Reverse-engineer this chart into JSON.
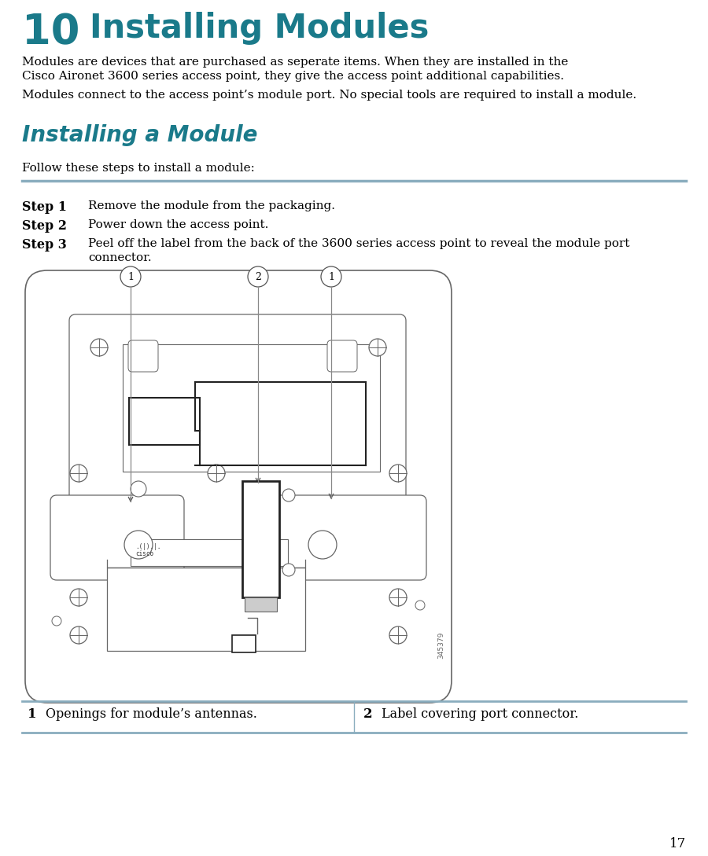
{
  "title_num": "10",
  "title_text": "  Installing Modules",
  "title_color": "#1a7a8a",
  "body_color": "#000000",
  "bg_color": "#ffffff",
  "para1_line1": "Modules are devices that are purchased as seperate items. When they are installed in the",
  "para1_line2": "Cisco Aironet 3600 series access point, they give the access point additional capabilities.",
  "para2": "Modules connect to the access point’s module port. No special tools are required to install a module.",
  "section_title": "Installing a Module",
  "follow_text": "Follow these steps to install a module:",
  "step1_label": "Step 1",
  "step1_text": "Remove the module from the packaging.",
  "step2_label": "Step 2",
  "step2_text": "Power down the access point.",
  "step3_label": "Step 3",
  "step3_text": "Peel off the label from the back of the 3600 series access point to reveal the module port",
  "step3_text2": "connector.",
  "callout1_label": "1",
  "callout2_label": "2",
  "footer_col1_num": "1",
  "footer_col1_text": "Openings for module’s antennas.",
  "footer_col2_num": "2",
  "footer_col2_text": "Label covering port connector.",
  "page_num": "17",
  "line_color": "#999999",
  "draw_line_color": "#666666",
  "thick_line_color": "#222222",
  "rule_color": "#8aadbe"
}
